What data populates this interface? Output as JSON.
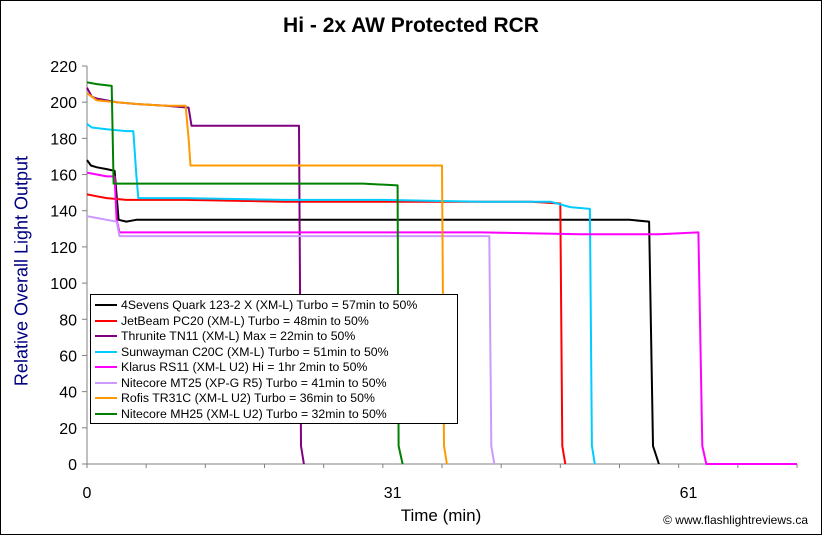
{
  "credit": "© www.flashlightreviews.ca",
  "chart_data": {
    "type": "line",
    "title": "Hi - 2x AW Protected RCR",
    "xlabel": "Time (min)",
    "ylabel": "Relative Overall Light Output",
    "xlim": [
      0,
      72
    ],
    "ylim": [
      0,
      220
    ],
    "x_ticks": [
      0,
      31,
      61
    ],
    "y_ticks": [
      0,
      20,
      40,
      60,
      80,
      100,
      120,
      140,
      160,
      180,
      200,
      220
    ],
    "grid": false,
    "legend_position": "bottom-left",
    "series": [
      {
        "name": "4Sevens Quark 123-2 X (XM-L) Turbo = 57min to 50%",
        "color": "#000000",
        "points": [
          [
            0,
            168
          ],
          [
            0.4,
            165
          ],
          [
            1,
            164
          ],
          [
            2,
            163
          ],
          [
            2.8,
            162
          ],
          [
            3.2,
            135
          ],
          [
            4,
            134
          ],
          [
            5,
            135
          ],
          [
            10,
            135
          ],
          [
            20,
            135
          ],
          [
            30,
            135
          ],
          [
            40,
            135
          ],
          [
            50,
            135
          ],
          [
            55,
            135
          ],
          [
            57,
            134
          ],
          [
            57.4,
            10
          ],
          [
            58,
            0
          ]
        ]
      },
      {
        "name": "JetBeam PC20 (XM-L) Turbo = 48min to 50%",
        "color": "#ff0000",
        "points": [
          [
            0,
            149
          ],
          [
            1,
            148
          ],
          [
            2,
            147
          ],
          [
            4,
            146
          ],
          [
            10,
            146
          ],
          [
            20,
            145
          ],
          [
            30,
            145
          ],
          [
            40,
            145
          ],
          [
            45,
            145
          ],
          [
            48,
            144
          ],
          [
            48.2,
            10
          ],
          [
            48.5,
            0
          ]
        ]
      },
      {
        "name": "Thrunite TN11 (XM-L) Max = 22min to 50%",
        "color": "#800080",
        "points": [
          [
            0,
            208
          ],
          [
            0.5,
            203
          ],
          [
            1,
            202
          ],
          [
            2,
            201
          ],
          [
            3,
            200
          ],
          [
            5,
            199
          ],
          [
            8,
            198
          ],
          [
            10.3,
            197
          ],
          [
            10.6,
            187
          ],
          [
            12,
            187
          ],
          [
            15,
            187
          ],
          [
            19,
            187
          ],
          [
            21.5,
            187
          ],
          [
            21.7,
            10
          ],
          [
            22,
            0
          ]
        ]
      },
      {
        "name": "Sunwayman C20C (XM-L) Turbo = 51min to 50%",
        "color": "#00ccff",
        "points": [
          [
            0,
            188
          ],
          [
            0.5,
            186
          ],
          [
            2,
            185
          ],
          [
            4,
            184
          ],
          [
            4.7,
            184
          ],
          [
            5,
            160
          ],
          [
            5.2,
            147
          ],
          [
            10,
            147
          ],
          [
            20,
            146
          ],
          [
            30,
            146
          ],
          [
            40,
            145
          ],
          [
            47,
            145
          ],
          [
            49,
            142
          ],
          [
            51,
            141
          ],
          [
            51.2,
            10
          ],
          [
            51.5,
            0
          ]
        ]
      },
      {
        "name": "Klarus RS11 (XM-L U2) Hi = 1hr 2min to 50%",
        "color": "#ff00ff",
        "points": [
          [
            0,
            161
          ],
          [
            1,
            160
          ],
          [
            2,
            159
          ],
          [
            2.8,
            159
          ],
          [
            3,
            135
          ],
          [
            3.3,
            128
          ],
          [
            10,
            128
          ],
          [
            20,
            128
          ],
          [
            30,
            128
          ],
          [
            40,
            128
          ],
          [
            50,
            127
          ],
          [
            58,
            127
          ],
          [
            62,
            128
          ],
          [
            62.4,
            10
          ],
          [
            62.8,
            0
          ],
          [
            72,
            0
          ]
        ]
      },
      {
        "name": "Nitecore MT25 (XP-G R5) Turbo = 41min to 50%",
        "color": "#cc99ff",
        "points": [
          [
            0,
            137
          ],
          [
            1,
            136
          ],
          [
            2,
            135
          ],
          [
            3,
            134
          ],
          [
            3.3,
            126
          ],
          [
            10,
            126
          ],
          [
            20,
            126
          ],
          [
            30,
            126
          ],
          [
            40,
            126
          ],
          [
            40.8,
            126
          ],
          [
            41,
            10
          ],
          [
            41.3,
            0
          ]
        ]
      },
      {
        "name": "Rofis TR31C (XM-L U2) Turbo = 36min to 50%",
        "color": "#ff9900",
        "points": [
          [
            0,
            205
          ],
          [
            1,
            201
          ],
          [
            3,
            200
          ],
          [
            5,
            199
          ],
          [
            8,
            198
          ],
          [
            10,
            198
          ],
          [
            10.3,
            180
          ],
          [
            10.5,
            165
          ],
          [
            15,
            165
          ],
          [
            20,
            165
          ],
          [
            25,
            165
          ],
          [
            30,
            165
          ],
          [
            35,
            165
          ],
          [
            36,
            165
          ],
          [
            36.2,
            10
          ],
          [
            36.5,
            0
          ]
        ]
      },
      {
        "name": "Nitecore MH25 (XM-L U2) Turbo = 32min to 50%",
        "color": "#008000",
        "points": [
          [
            0,
            211
          ],
          [
            1,
            210
          ],
          [
            2.5,
            209
          ],
          [
            2.7,
            155
          ],
          [
            5,
            155
          ],
          [
            10,
            155
          ],
          [
            20,
            155
          ],
          [
            28,
            155
          ],
          [
            31.5,
            154
          ],
          [
            31.6,
            10
          ],
          [
            32,
            0
          ]
        ]
      }
    ]
  }
}
